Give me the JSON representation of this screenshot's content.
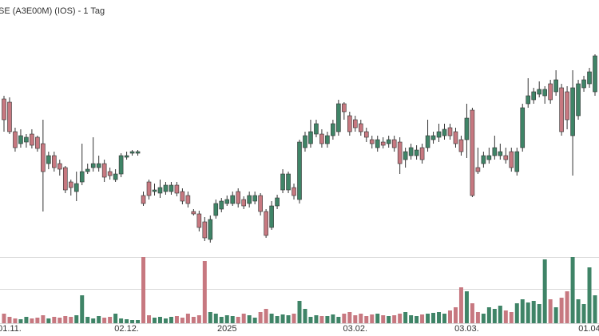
{
  "chart_data": {
    "type": "candlestick",
    "title": "SE (A3E00M) (IOS) - 1 Tag",
    "categories": [
      null,
      "01.11.",
      null,
      null,
      null,
      null,
      null,
      null,
      null,
      null,
      null,
      null,
      null,
      null,
      null,
      null,
      null,
      null,
      null,
      null,
      null,
      null,
      "02.12.",
      null,
      null,
      null,
      null,
      null,
      null,
      null,
      null,
      null,
      null,
      null,
      null,
      null,
      null,
      null,
      null,
      null,
      "2025",
      null,
      null,
      null,
      null,
      null,
      null,
      null,
      null,
      null,
      null,
      null,
      null,
      null,
      null,
      null,
      null,
      null,
      null,
      null,
      null,
      null,
      null,
      "03.02.",
      null,
      null,
      null,
      null,
      null,
      null,
      null,
      null,
      null,
      null,
      null,
      null,
      null,
      null,
      null,
      null,
      null,
      null,
      null,
      "03.03.",
      null,
      null,
      null,
      null,
      null,
      null,
      null,
      null,
      null,
      null,
      null,
      null,
      null,
      null,
      null,
      null,
      null,
      null,
      null,
      null,
      null,
      "01.04",
      null
    ],
    "open": [
      276,
      272,
      235,
      220,
      222,
      232,
      228,
      220,
      195,
      205,
      195,
      190,
      172,
      160,
      172,
      185,
      190,
      190,
      195,
      185,
      175,
      182,
      203,
      208,
      208,
      155,
      172,
      160,
      158,
      160,
      160,
      168,
      160,
      155,
      135,
      132,
      122,
      100,
      130,
      138,
      145,
      145,
      160,
      150,
      145,
      148,
      155,
      135,
      115,
      142,
      162,
      162,
      165,
      150,
      215,
      220,
      232,
      232,
      220,
      230,
      235,
      270,
      255,
      250,
      245,
      235,
      225,
      215,
      222,
      220,
      225,
      222,
      200,
      205,
      205,
      215,
      215,
      225,
      228,
      230,
      240,
      235,
      225,
      225,
      262,
      190,
      195,
      200,
      205,
      205,
      205,
      210,
      185,
      215,
      270,
      275,
      282,
      280,
      295,
      285,
      290,
      285,
      230,
      255,
      290,
      295,
      285
    ],
    "high": [
      280,
      278,
      240,
      238,
      232,
      238,
      230,
      250,
      210,
      210,
      200,
      192,
      175,
      185,
      220,
      195,
      228,
      205,
      200,
      190,
      188,
      208,
      210,
      212,
      212,
      160,
      175,
      170,
      175,
      172,
      172,
      172,
      164,
      160,
      138,
      136,
      128,
      130,
      150,
      152,
      155,
      160,
      164,
      154,
      160,
      160,
      158,
      138,
      148,
      156,
      188,
      185,
      170,
      225,
      235,
      250,
      250,
      238,
      235,
      250,
      275,
      272,
      260,
      255,
      250,
      240,
      230,
      230,
      228,
      230,
      230,
      228,
      215,
      220,
      218,
      220,
      250,
      235,
      245,
      245,
      245,
      240,
      230,
      270,
      265,
      215,
      210,
      215,
      230,
      220,
      215,
      215,
      215,
      270,
      302,
      290,
      298,
      292,
      300,
      312,
      295,
      292,
      312,
      300,
      305,
      315,
      332
    ],
    "low": [
      235,
      232,
      210,
      215,
      215,
      214,
      210,
      135,
      188,
      185,
      180,
      158,
      155,
      148,
      168,
      182,
      185,
      185,
      172,
      175,
      172,
      178,
      200,
      205,
      205,
      142,
      150,
      155,
      152,
      156,
      156,
      154,
      144,
      140,
      130,
      110,
      98,
      96,
      126,
      134,
      142,
      142,
      140,
      138,
      140,
      144,
      130,
      102,
      112,
      138,
      158,
      158,
      150,
      145,
      210,
      215,
      228,
      215,
      215,
      225,
      230,
      250,
      230,
      235,
      230,
      222,
      214,
      210,
      214,
      215,
      210,
      182,
      190,
      200,
      200,
      195,
      210,
      220,
      222,
      225,
      225,
      215,
      205,
      202,
      153,
      182,
      190,
      195,
      200,
      200,
      195,
      185,
      180,
      210,
      265,
      270,
      278,
      270,
      270,
      280,
      230,
      238,
      180,
      250,
      285,
      290,
      280
    ],
    "close": [
      250,
      235,
      215,
      230,
      228,
      218,
      214,
      185,
      205,
      190,
      188,
      162,
      165,
      170,
      185,
      188,
      195,
      195,
      178,
      180,
      182,
      205,
      205,
      210,
      210,
      145,
      155,
      162,
      165,
      168,
      168,
      158,
      148,
      145,
      132,
      115,
      102,
      125,
      145,
      148,
      150,
      155,
      145,
      142,
      155,
      155,
      135,
      105,
      142,
      152,
      182,
      182,
      155,
      222,
      230,
      235,
      245,
      220,
      230,
      245,
      270,
      260,
      235,
      240,
      235,
      228,
      220,
      225,
      218,
      225,
      215,
      195,
      210,
      215,
      212,
      200,
      230,
      230,
      235,
      238,
      230,
      220,
      210,
      252,
      155,
      185,
      205,
      205,
      215,
      210,
      200,
      190,
      210,
      265,
      280,
      285,
      288,
      288,
      275,
      300,
      235,
      250,
      290,
      295,
      300,
      310,
      330
    ],
    "volume": [
      12,
      8,
      6,
      5,
      8,
      6,
      7,
      10,
      6,
      8,
      7,
      9,
      8,
      10,
      35,
      8,
      6,
      9,
      7,
      8,
      12,
      6,
      5,
      4,
      4,
      83,
      10,
      7,
      8,
      6,
      8,
      9,
      7,
      12,
      8,
      10,
      78,
      14,
      12,
      8,
      10,
      9,
      8,
      12,
      10,
      7,
      14,
      18,
      12,
      9,
      11,
      10,
      12,
      28,
      18,
      8,
      10,
      9,
      9,
      11,
      8,
      12,
      14,
      10,
      12,
      9,
      11,
      12,
      10,
      9,
      10,
      12,
      14,
      10,
      9,
      11,
      12,
      13,
      14,
      12,
      16,
      20,
      45,
      40,
      25,
      14,
      12,
      20,
      18,
      22,
      16,
      14,
      25,
      30,
      26,
      28,
      24,
      80,
      30,
      20,
      32,
      40,
      83,
      30,
      24,
      70,
      35
    ],
    "ylim": [
      90,
      340
    ],
    "volume_ylim": [
      0,
      83
    ],
    "up_color": "#3f8467",
    "down_color": "#c77880"
  }
}
